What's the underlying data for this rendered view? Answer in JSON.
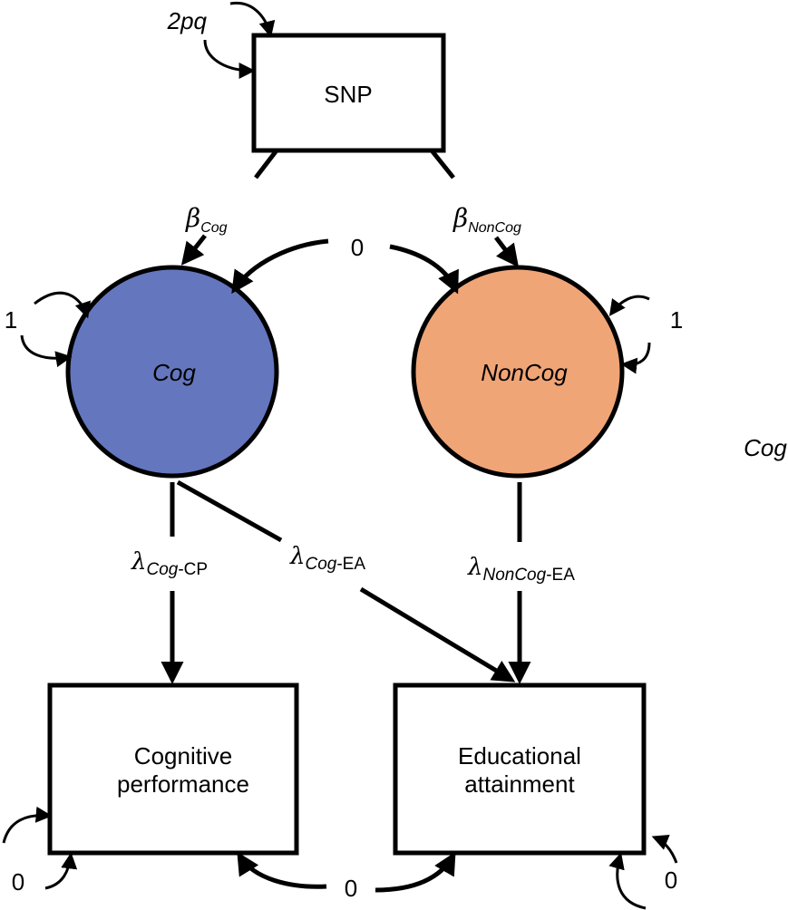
{
  "nodes": {
    "snp": {
      "label": "SNP",
      "variance": "2pq"
    },
    "cog": {
      "label": "Cog",
      "variance": "1",
      "color": "#6476bd"
    },
    "noncog": {
      "label": "NonCog",
      "variance": "1",
      "color": "#f0a577"
    },
    "cp": {
      "line1": "Cognitive",
      "line2": "performance",
      "variance": "0"
    },
    "ea": {
      "line1": "Educational",
      "line2": "attainment",
      "variance": "0"
    }
  },
  "paths": {
    "beta_cog": {
      "symbol": "β",
      "sub": "Cog"
    },
    "beta_noncog": {
      "symbol": "β",
      "sub": "NonCog"
    },
    "latent_cov": "0",
    "residual_cov": "0",
    "lambda_cog_cp": {
      "symbol": "λ",
      "sub_italic": "Cog",
      "sub_plain": "-CP"
    },
    "lambda_cog_ea": {
      "symbol": "λ",
      "sub_italic": "Cog",
      "sub_plain": "-EA"
    },
    "lambda_noncog_ea": {
      "symbol": "λ",
      "sub_italic": "NonCog",
      "sub_plain": "-EA"
    }
  },
  "stray_label": "Cog"
}
